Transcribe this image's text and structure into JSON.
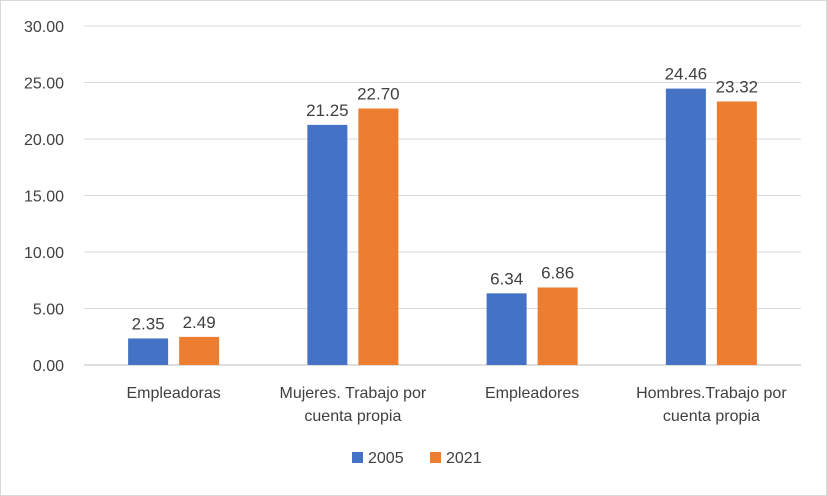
{
  "chart_data": {
    "type": "bar",
    "categories": [
      [
        "Empleadoras"
      ],
      [
        "Mujeres. Trabajo por",
        "cuenta propia"
      ],
      [
        "Empleadores"
      ],
      [
        "Hombres.Trabajo por",
        "cuenta propia"
      ]
    ],
    "series": [
      {
        "name": "2005",
        "color": "#4472c4",
        "values": [
          2.35,
          21.25,
          6.34,
          24.46
        ]
      },
      {
        "name": "2021",
        "color": "#ed7d31",
        "values": [
          2.49,
          22.7,
          6.86,
          23.32
        ]
      }
    ],
    "value_labels": [
      [
        "2.35",
        "21.25",
        "6.34",
        "24.46"
      ],
      [
        "2.49",
        "22.70",
        "6.86",
        "23.32"
      ]
    ],
    "y_ticks": [
      "0.00",
      "5.00",
      "10.00",
      "15.00",
      "20.00",
      "25.00",
      "30.00"
    ],
    "ylim": [
      0,
      30
    ],
    "grid": true,
    "legend_position": "bottom",
    "title": "",
    "xlabel": "",
    "ylabel": ""
  }
}
